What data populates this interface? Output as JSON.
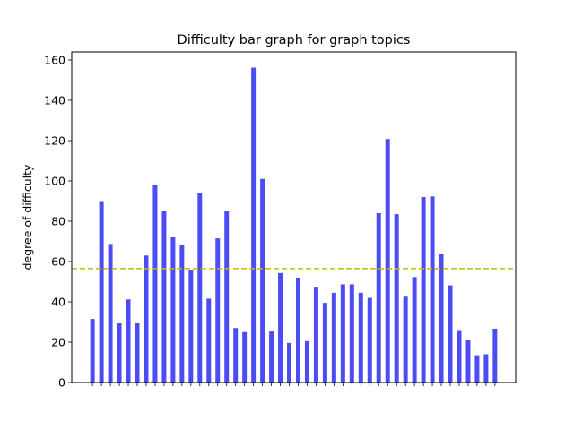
{
  "chart_data": {
    "type": "bar",
    "title": "Difficulty bar graph for graph topics",
    "xlabel": "",
    "ylabel": "degree of difficulty",
    "ylim": [
      0,
      164
    ],
    "yticks": [
      0,
      20,
      40,
      60,
      80,
      100,
      120,
      140,
      160
    ],
    "yticks_text": [
      "0",
      "20",
      "40",
      "60",
      "80",
      "100",
      "120",
      "140",
      "160"
    ],
    "values": [
      31.5,
      90,
      68.7,
      29.5,
      41.2,
      29.5,
      63,
      98,
      85,
      72,
      68,
      56,
      94,
      41.6,
      71.5,
      85,
      27,
      25,
      156.2,
      101,
      25.3,
      54.3,
      19.6,
      52,
      20.5,
      47.5,
      39.5,
      44.5,
      48.7,
      48.7,
      44.5,
      42,
      84,
      120.8,
      83.5,
      43,
      52.3,
      92,
      92.3,
      64,
      48.2,
      26,
      21.3,
      13.5,
      14,
      26.7
    ],
    "bar_color": "#4c4cf4",
    "mean_line": {
      "value": 56.5,
      "color": "#bfbf00",
      "style": "dashed"
    },
    "grid": false
  }
}
